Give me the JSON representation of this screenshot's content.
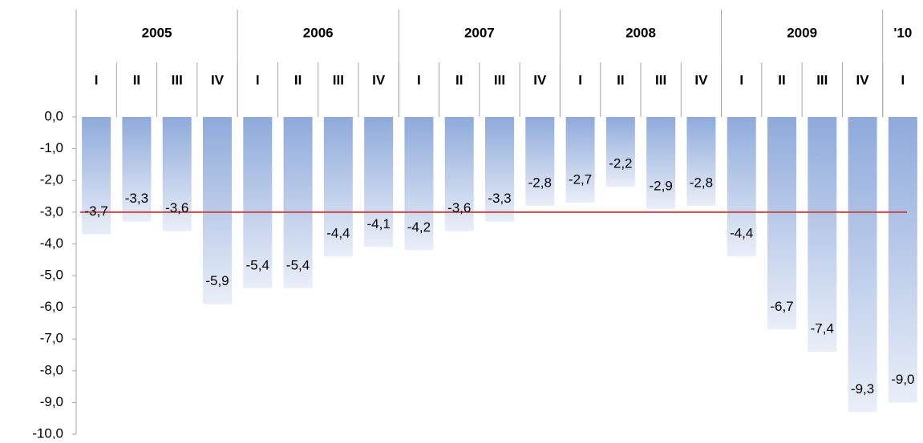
{
  "chart_data": {
    "type": "bar",
    "groups": [
      {
        "name": "2005",
        "size": 4
      },
      {
        "name": "2006",
        "size": 4
      },
      {
        "name": "2007",
        "size": 4
      },
      {
        "name": "2008",
        "size": 4
      },
      {
        "name": "2009",
        "size": 4
      },
      {
        "name": "'10",
        "size": 1
      }
    ],
    "categories": [
      "I",
      "II",
      "III",
      "IV",
      "I",
      "II",
      "III",
      "IV",
      "I",
      "II",
      "III",
      "IV",
      "I",
      "II",
      "III",
      "IV",
      "I",
      "II",
      "III",
      "IV",
      "I"
    ],
    "values": [
      -3.7,
      -3.3,
      -3.6,
      -5.9,
      -5.4,
      -5.4,
      -4.4,
      -4.1,
      -4.2,
      -3.6,
      -3.3,
      -2.8,
      -2.7,
      -2.2,
      -2.9,
      -2.8,
      -4.4,
      -6.7,
      -7.4,
      -9.3,
      -9.0
    ],
    "value_labels": [
      "-3,7",
      "-3,3",
      "-3,6",
      "-5,9",
      "-5,4",
      "-5,4",
      "-4,4",
      "-4,1",
      "-4,2",
      "-3,6",
      "-3,3",
      "-2,8",
      "-2,7",
      "-2,2",
      "-2,9",
      "-2,8",
      "-4,4",
      "-6,7",
      "-7,4",
      "-9,3",
      "-9,0"
    ],
    "color": "#8eaadb",
    "reference_line": {
      "value": -3.0,
      "color": "#c0504d"
    },
    "ylim": [
      -10,
      0
    ],
    "yticks": [
      {
        "value": 0,
        "label": "0,0"
      },
      {
        "value": -1,
        "label": "-1,0"
      },
      {
        "value": -2,
        "label": "-2,0"
      },
      {
        "value": -3,
        "label": "-3,0"
      },
      {
        "value": -4,
        "label": "-4,0"
      },
      {
        "value": -5,
        "label": "-5,0"
      },
      {
        "value": -6,
        "label": "-6,0"
      },
      {
        "value": -7,
        "label": "-7,0"
      },
      {
        "value": -8,
        "label": "-8,0"
      },
      {
        "value": -9,
        "label": "-9,0"
      },
      {
        "value": -10,
        "label": "-10,0"
      }
    ]
  }
}
